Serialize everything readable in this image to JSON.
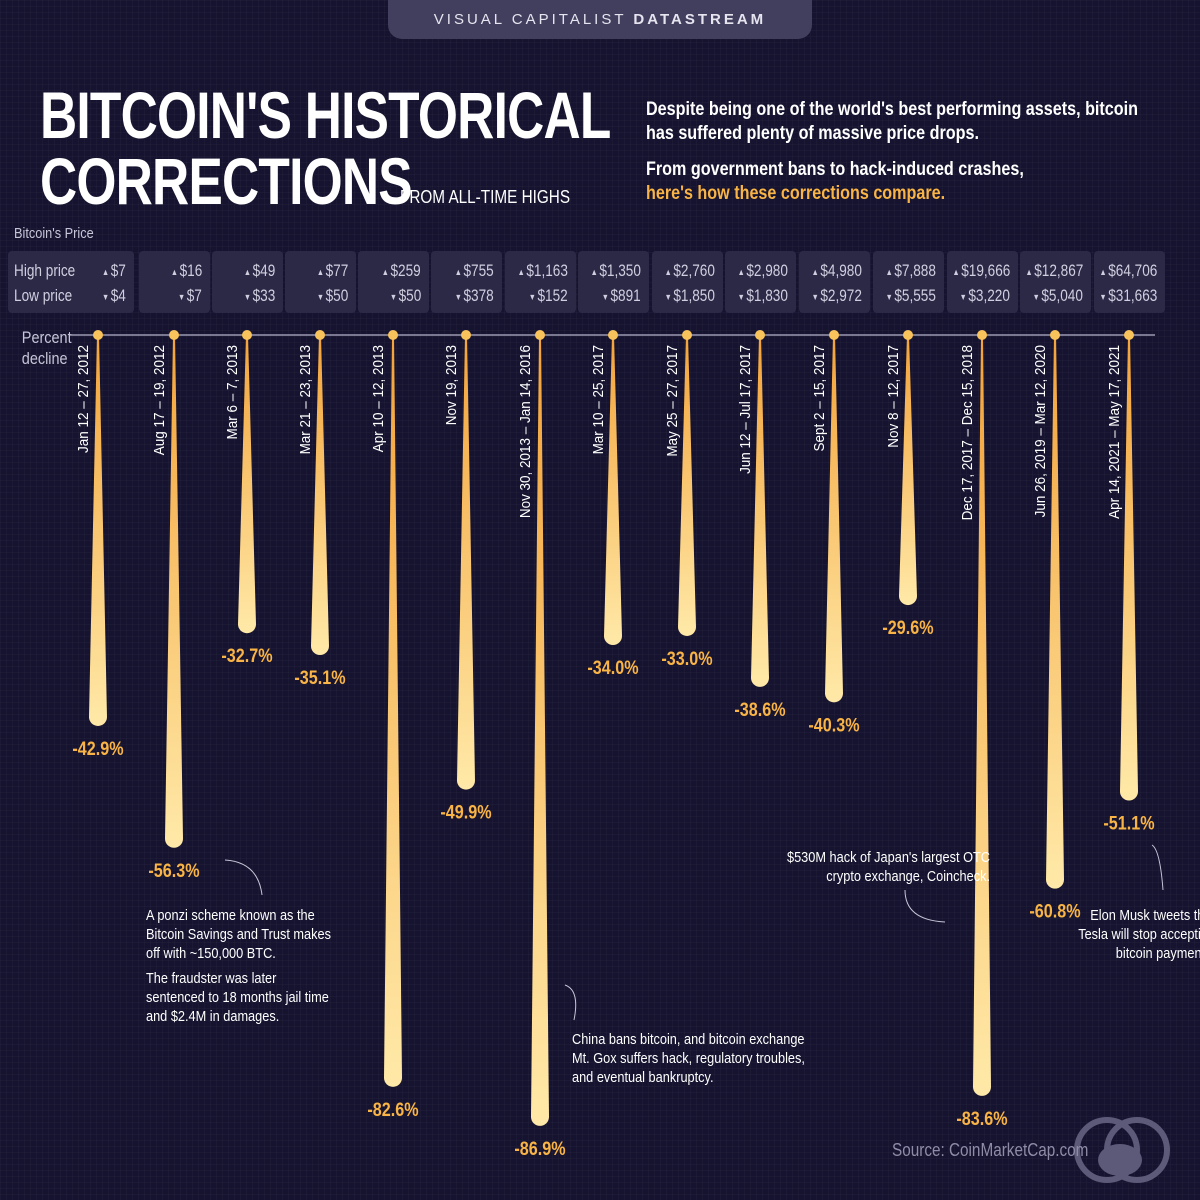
{
  "brand": {
    "regular": "VISUAL CAPITALIST ",
    "bold": "DATASTREAM"
  },
  "title": {
    "line1": "BITCOIN'S HISTORICAL",
    "line2": "CORRECTIONS",
    "subtitle": "FROM ALL-TIME HIGHS"
  },
  "intro": {
    "p1": "Despite being one of the world's best performing assets, bitcoin has suffered plenty of massive price drops.",
    "p2a": "From government bans to hack-induced crashes,",
    "p2b": "here's how these corrections compare."
  },
  "price_header": "Bitcoin's Price",
  "high_label": "High price",
  "low_label": "Low price",
  "percent_label_1": "Percent",
  "percent_label_2": "decline",
  "colors": {
    "background": "#15132f",
    "accent": "#f9b445",
    "box": "#2b2946"
  },
  "chart_data": {
    "type": "bar",
    "orientation": "downward drops from baseline",
    "categories": [
      "Jan 12 – 27, 2012",
      "Aug 17 – 19, 2012",
      "Mar 6 – 7, 2013",
      "Mar 21 – 23, 2013",
      "Apr 10 – 12, 2013",
      "Nov 19, 2013",
      "Nov 30, 2013 – Jan 14, 2016",
      "Mar 10 – 25, 2017",
      "May 25 – 27, 2017",
      "Jun 12 – Jul 17, 2017",
      "Sept 2 – 15, 2017",
      "Nov 8 – 12, 2017",
      "Dec 17, 2017 – Dec 15, 2018",
      "Jun 26, 2019 – Mar 12, 2020",
      "Apr 14,  2021 – May 17, 2021"
    ],
    "values": [
      -42.9,
      -56.3,
      -32.7,
      -35.1,
      -82.6,
      -49.9,
      -86.9,
      -34.0,
      -33.0,
      -38.6,
      -40.3,
      -29.6,
      -83.6,
      -60.8,
      -51.1
    ],
    "value_labels": [
      "-42.9%",
      "-56.3%",
      "-32.7%",
      "-35.1%",
      "-82.6%",
      "-49.9%",
      "-86.9%",
      "-34.0%",
      "-33.0%",
      "-38.6%",
      "-40.3%",
      "-29.6%",
      "-83.6%",
      "-60.8%",
      "-51.1%"
    ],
    "high_prices": [
      "$7",
      "$16",
      "$49",
      "$77",
      "$259",
      "$755",
      "$1,163",
      "$1,350",
      "$2,760",
      "$2,980",
      "$4,980",
      "$7,888",
      "$19,666",
      "$12,867",
      "$64,706"
    ],
    "low_prices": [
      "$4",
      "$7",
      "$33",
      "$50",
      "$50",
      "$378",
      "$152",
      "$891",
      "$1,850",
      "$1,830",
      "$2,972",
      "$5,555",
      "$3,220",
      "$5,040",
      "$31,663"
    ],
    "ylabel": "Percent decline",
    "ylim": [
      -100,
      0
    ]
  },
  "annotations": {
    "ponzi_1": "A ponzi scheme known as the Bitcoin Savings and Trust makes off with ~150,000 BTC.",
    "ponzi_2": "The fraudster was later sentenced to 18 months jail time and $2.4M in damages.",
    "china": "China bans bitcoin, and bitcoin exchange Mt. Gox suffers hack, regulatory troubles, and eventual bankruptcy.",
    "coincheck": "$530M hack of Japan's largest OTC crypto exchange, Coincheck.",
    "musk": "Elon Musk tweets that Tesla will stop accepting bitcoin payments."
  },
  "source": "Source: CoinMarketCap.com"
}
